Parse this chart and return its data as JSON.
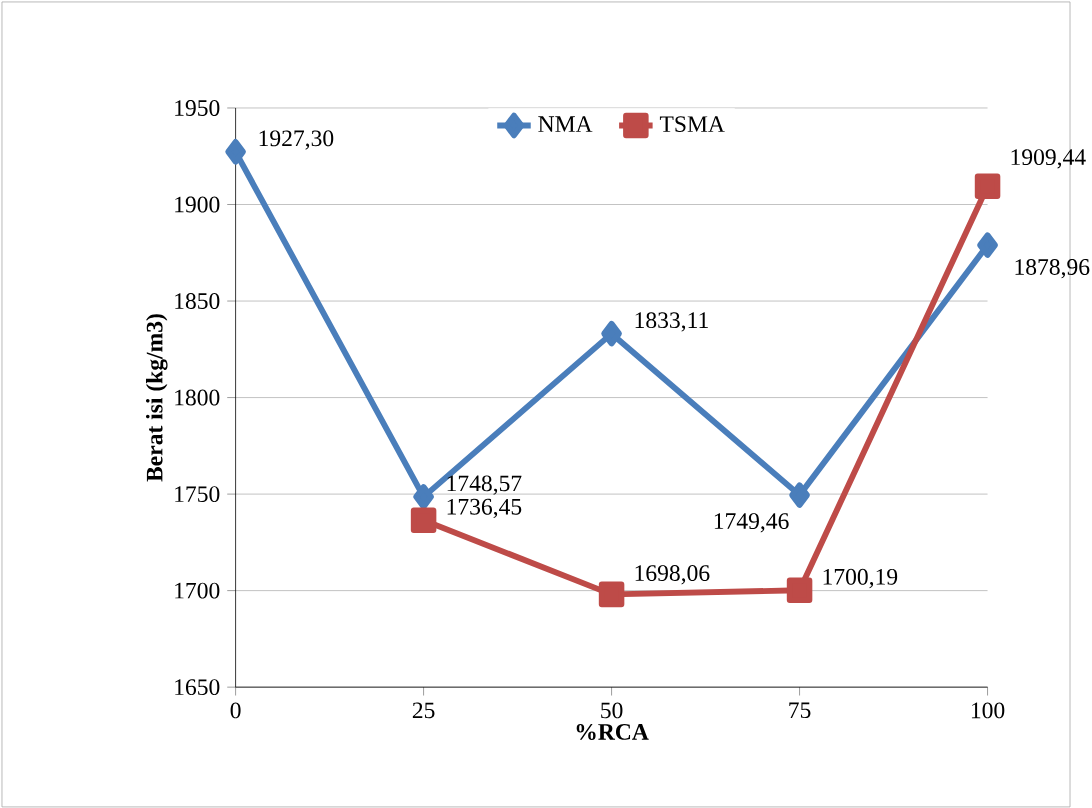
{
  "chart_data": {
    "type": "line",
    "xlabel": "%RCA",
    "ylabel": "Berat isi (kg/m3)",
    "x": [
      0,
      25,
      50,
      75,
      100
    ],
    "xlim": [
      0,
      100
    ],
    "xticks": [
      0,
      25,
      50,
      75,
      100
    ],
    "ylim": [
      1650,
      1950
    ],
    "yticks": [
      1650,
      1700,
      1750,
      1800,
      1850,
      1900,
      1950
    ],
    "grid": "y",
    "legend": "top",
    "series": [
      {
        "name": "NMA",
        "color": "#4a7ebb",
        "marker": "diamond",
        "values": [
          1927.3,
          1748.57,
          1833.11,
          1749.46,
          1878.96
        ],
        "value_labels": [
          "1927,30",
          "1748,57",
          "1833,11",
          "1749,46",
          "1878,96"
        ]
      },
      {
        "name": "TSMA",
        "color": "#be4b48",
        "marker": "square",
        "values": [
          null,
          1736.45,
          1698.06,
          1700.19,
          1909.44
        ],
        "value_labels": [
          null,
          "1736,45",
          "1698,06",
          "1700,19",
          "1909,44"
        ]
      }
    ]
  }
}
